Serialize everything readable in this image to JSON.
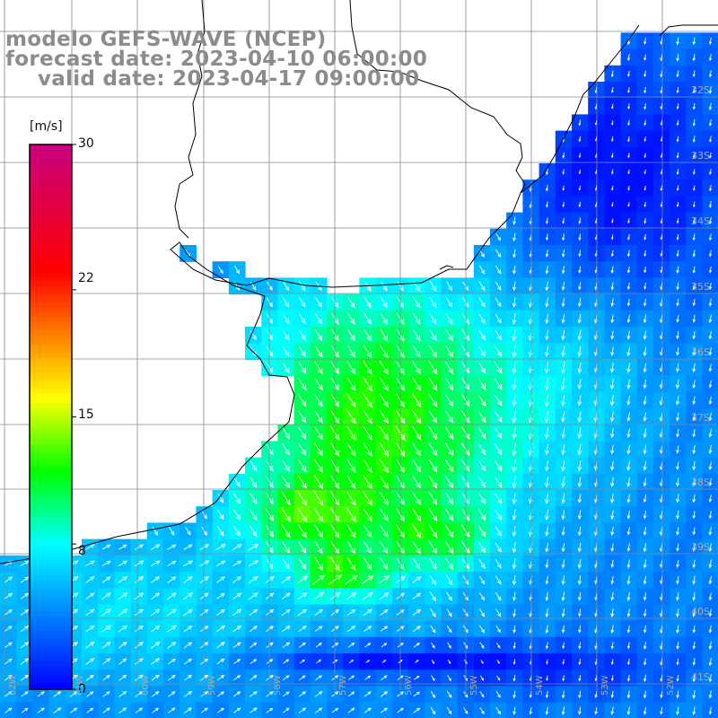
{
  "header": {
    "line1": "modelo GEFS-WAVE (NCEP)",
    "line2": "forecast date: 2023-04-10 06:00:00",
    "line3": "valid date: 2023-04-17 09:00:00"
  },
  "colorbar": {
    "unit": "[m/s]",
    "min": 0,
    "max": 30,
    "tick_labels": [
      "30",
      "22",
      "15",
      "8",
      "0"
    ],
    "tick_values": [
      30,
      22,
      15,
      8,
      0
    ],
    "colors": [
      "#0000ff",
      "#00ffff",
      "#00ff00",
      "#ffff00",
      "#ff0000",
      "#c80080"
    ]
  },
  "map": {
    "lat_labels": [
      "32S",
      "33S",
      "34S",
      "35S",
      "36S",
      "37S",
      "38S",
      "39S",
      "40S",
      "41S"
    ],
    "lon_labels": [
      "62W",
      "61W",
      "60W",
      "59W",
      "58W",
      "57W",
      "56W",
      "55W",
      "54W",
      "53W",
      "52W",
      "51W"
    ],
    "colors": {
      "land": "#ffffff",
      "coast": "#000000",
      "grid": "#888888",
      "arrows": "#ffffff"
    }
  }
}
